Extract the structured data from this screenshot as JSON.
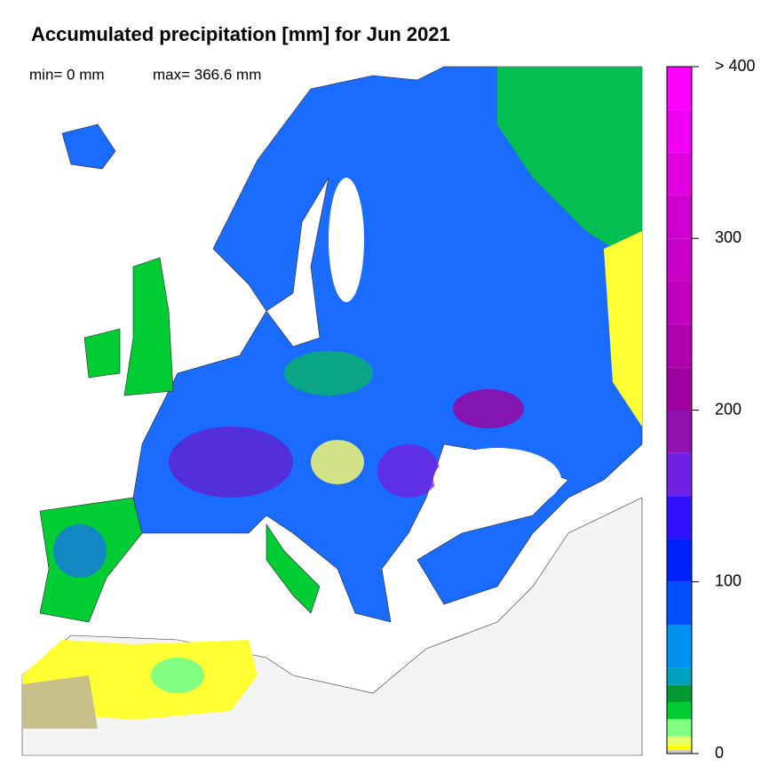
{
  "chart_data": {
    "type": "colormap",
    "title": "Accumulated precipitation [mm] for Jun 2021",
    "min_label": "min= 0 mm",
    "max_label": "max= 366.6 mm",
    "colorbar": {
      "lim": [
        0,
        400
      ],
      "ticks": [
        0,
        100,
        200,
        300,
        {
          "value": 400,
          "label": "> 400"
        }
      ],
      "bounds": [
        0,
        2,
        5,
        10,
        20,
        30,
        40,
        50,
        75,
        100,
        125,
        150,
        175,
        200,
        225,
        250,
        275,
        300,
        325,
        350,
        375,
        400
      ],
      "colors": [
        "#c8c8c8",
        "#ffff00",
        "#e6ff66",
        "#80ff80",
        "#00cc33",
        "#009933",
        "#00a0c0",
        "#0090f0",
        "#0050ff",
        "#0020ff",
        "#3010ff",
        "#7020e0",
        "#9010b0",
        "#a000a0",
        "#b000b0",
        "#c000c0",
        "#c800c8",
        "#d000d0",
        "#e000e0",
        "#f000f0",
        "#ff00ff"
      ]
    }
  }
}
